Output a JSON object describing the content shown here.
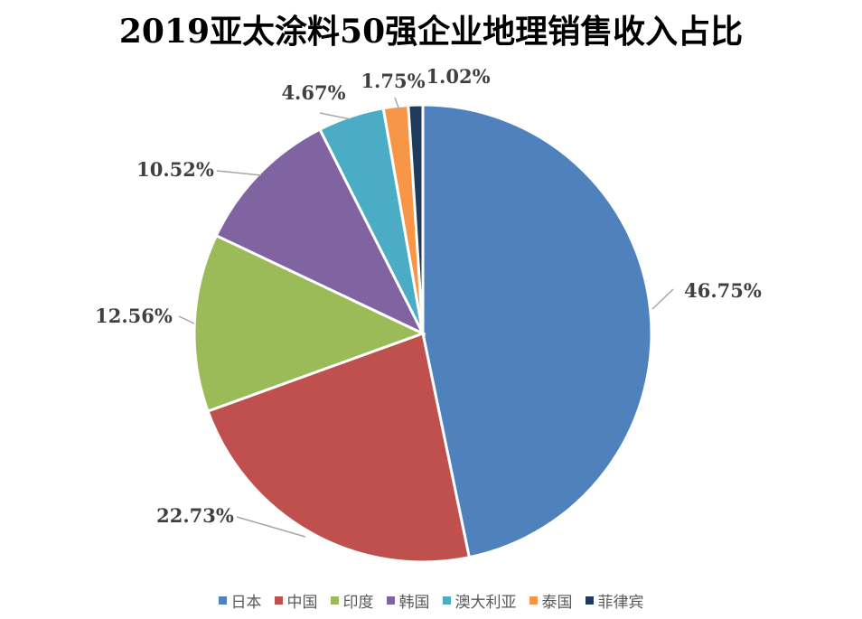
{
  "title": "2019亚太涂料50强企业地理销售收入占比",
  "chart_data": {
    "type": "pie",
    "title": "2019亚太涂料50强企业地理销售收入占比",
    "categories": [
      "日本",
      "中国",
      "印度",
      "韩国",
      "澳大利亚",
      "泰国",
      "菲律宾"
    ],
    "values": [
      46.75,
      22.73,
      12.56,
      10.52,
      4.67,
      1.75,
      1.02
    ],
    "labels": [
      "46.75%",
      "22.73%",
      "12.56%",
      "10.52%",
      "4.67%",
      "1.75%",
      "1.02%"
    ],
    "colors": [
      "#4F81BD",
      "#C0504D",
      "#9BBB59",
      "#8064A2",
      "#4BACC6",
      "#F79646",
      "#1F3B5C"
    ],
    "legend_position": "bottom",
    "start_angle_deg": 0,
    "direction": "clockwise"
  }
}
